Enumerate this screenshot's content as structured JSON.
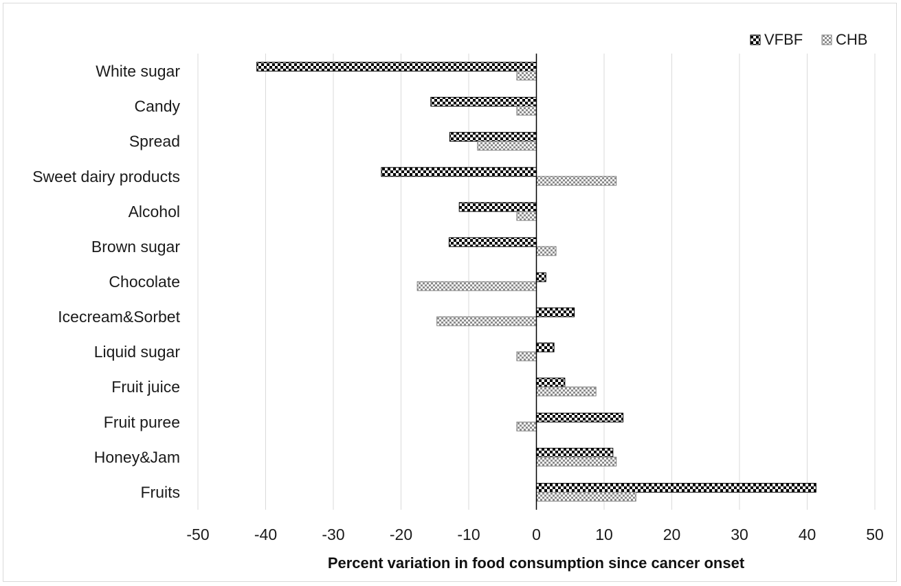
{
  "chart_data": {
    "type": "bar",
    "orientation": "horizontal",
    "categories": [
      "White sugar",
      "Candy",
      "Spread",
      "Sweet dairy products",
      "Alcohol",
      "Brown sugar",
      "Chocolate",
      "Icecream&Sorbet",
      "Liquid sugar",
      "Fruit juice",
      "Fruit puree",
      "Honey&Jam",
      "Fruits"
    ],
    "series": [
      {
        "name": "VFBF",
        "values": [
          -41.3,
          -15.6,
          -12.8,
          -22.9,
          -11.4,
          -12.9,
          1.4,
          5.6,
          2.6,
          4.2,
          12.8,
          11.3,
          41.3
        ]
      },
      {
        "name": "CHB",
        "values": [
          -2.9,
          -2.9,
          -8.7,
          11.8,
          -2.9,
          2.9,
          -17.6,
          -14.7,
          -2.9,
          8.8,
          -2.9,
          11.8,
          14.7
        ]
      }
    ],
    "xlabel": "Percent variation in food consumption since cancer onset",
    "xlim": [
      -50,
      50
    ],
    "xticks": [
      -50,
      -40,
      -30,
      -20,
      -10,
      0,
      10,
      20,
      30,
      40,
      50
    ],
    "grid": "vertical",
    "legend": "top-right",
    "colors": {
      "VFBF": "#000000",
      "CHB": "#7f7f7f",
      "grid": "#d9d9d9"
    }
  }
}
